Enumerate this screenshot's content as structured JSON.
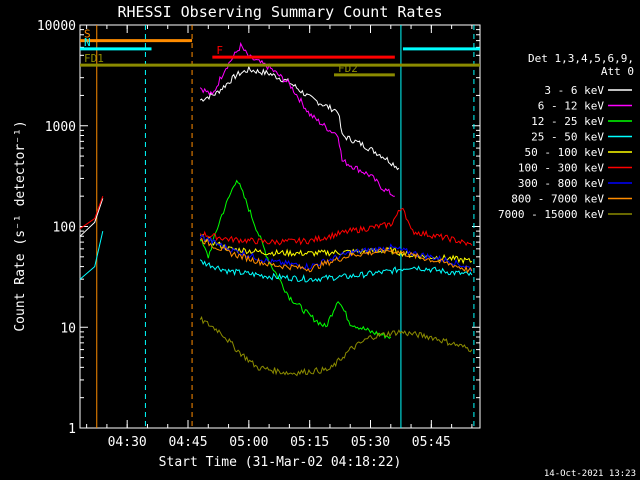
{
  "chart_data": {
    "type": "line",
    "title": "RHESSI Observing Summary Count Rates",
    "xlabel": "Start Time (31-Mar-02 04:18:22)",
    "ylabel": "Count Rate (s⁻¹ detector⁻¹)",
    "y_scale": "log",
    "ylim": [
      1,
      10000
    ],
    "xlim": [
      "04:18:22",
      "05:57:00"
    ],
    "x_ticks": [
      "04:30",
      "04:45",
      "05:00",
      "05:15",
      "05:30",
      "05:45"
    ],
    "y_ticks": [
      "1",
      "10",
      "100",
      "1000",
      "10000"
    ],
    "grid": false,
    "legend_header": [
      "Det 1,3,4,5,6,9,",
      "Att 0"
    ],
    "legend_position": "right",
    "timestamp": "14-Oct-2021 13:23",
    "series": [
      {
        "name": "3 - 6 keV",
        "color": "#ffffff",
        "points": [
          [
            "04:48:00",
            1800
          ],
          [
            "04:52:00",
            2100
          ],
          [
            "04:57:00",
            3200
          ],
          [
            "05:00:00",
            3600
          ],
          [
            "05:05:00",
            3300
          ],
          [
            "05:10:00",
            2700
          ],
          [
            "05:15:00",
            1900
          ],
          [
            "05:20:00",
            1500
          ],
          [
            "05:22:00",
            1400
          ],
          [
            "05:23:00",
            800
          ],
          [
            "05:28:00",
            650
          ],
          [
            "05:33:00",
            500
          ],
          [
            "05:37:00",
            380
          ]
        ]
      },
      {
        "name": "6 - 12 keV",
        "color": "#ff00ff",
        "points": [
          [
            "04:48:00",
            2400
          ],
          [
            "04:51:00",
            2000
          ],
          [
            "04:54:00",
            3600
          ],
          [
            "04:58:00",
            6200
          ],
          [
            "05:00:00",
            4800
          ],
          [
            "05:05:00",
            3800
          ],
          [
            "05:10:00",
            2600
          ],
          [
            "05:15:00",
            1300
          ],
          [
            "05:20:00",
            900
          ],
          [
            "05:22:00",
            820
          ],
          [
            "05:23:00",
            450
          ],
          [
            "05:30:00",
            320
          ],
          [
            "05:33:00",
            240
          ],
          [
            "05:36:00",
            200
          ]
        ]
      },
      {
        "name": "12 - 25 keV",
        "color": "#00ff00",
        "points": [
          [
            "04:48:00",
            75
          ],
          [
            "04:50:00",
            50
          ],
          [
            "04:53:00",
            120
          ],
          [
            "04:57:00",
            300
          ],
          [
            "05:00:00",
            150
          ],
          [
            "05:05:00",
            45
          ],
          [
            "05:10:00",
            20
          ],
          [
            "05:15:00",
            13
          ],
          [
            "05:19:00",
            10
          ],
          [
            "05:22:00",
            19
          ],
          [
            "05:25:00",
            11
          ],
          [
            "05:30:00",
            9
          ],
          [
            "05:35:00",
            8
          ]
        ]
      },
      {
        "name": "25 - 50 keV",
        "color": "#00ffff",
        "points": [
          [
            "04:48:00",
            45
          ],
          [
            "04:55:00",
            36
          ],
          [
            "05:05:00",
            32
          ],
          [
            "05:15:00",
            30
          ],
          [
            "05:25:00",
            32
          ],
          [
            "05:35:00",
            36
          ],
          [
            "05:40:00",
            40
          ],
          [
            "05:50:00",
            35
          ],
          [
            "05:55:00",
            33
          ]
        ]
      },
      {
        "name": "50 - 100 keV",
        "color": "#ffff00",
        "points": [
          [
            "04:48:00",
            80
          ],
          [
            "04:55:00",
            60
          ],
          [
            "05:05:00",
            55
          ],
          [
            "05:15:00",
            54
          ],
          [
            "05:25:00",
            56
          ],
          [
            "05:35:00",
            58
          ],
          [
            "05:40:00",
            52
          ],
          [
            "05:50:00",
            48
          ],
          [
            "05:55:00",
            45
          ]
        ]
      },
      {
        "name": "100 - 300 keV",
        "color": "#ff0000",
        "points": [
          [
            "04:48:00",
            85
          ],
          [
            "04:55:00",
            75
          ],
          [
            "05:05:00",
            70
          ],
          [
            "05:15:00",
            72
          ],
          [
            "05:25:00",
            90
          ],
          [
            "05:35:00",
            105
          ],
          [
            "05:38:00",
            160
          ],
          [
            "05:40:00",
            90
          ],
          [
            "05:50:00",
            75
          ],
          [
            "05:55:00",
            65
          ]
        ]
      },
      {
        "name": "300 - 800 keV",
        "color": "#0000ff",
        "points": [
          [
            "04:48:00",
            80
          ],
          [
            "04:55:00",
            60
          ],
          [
            "05:05:00",
            45
          ],
          [
            "05:15:00",
            40
          ],
          [
            "05:25:00",
            55
          ],
          [
            "05:35:00",
            62
          ],
          [
            "05:40:00",
            55
          ],
          [
            "05:50:00",
            45
          ],
          [
            "05:55:00",
            38
          ]
        ]
      },
      {
        "name": "800 - 7000 keV",
        "color": "#ff8c00",
        "points": [
          [
            "04:48:00",
            75
          ],
          [
            "04:55:00",
            55
          ],
          [
            "05:05:00",
            42
          ],
          [
            "05:15:00",
            38
          ],
          [
            "05:25:00",
            52
          ],
          [
            "05:35:00",
            58
          ],
          [
            "05:40:00",
            52
          ],
          [
            "05:50:00",
            42
          ],
          [
            "05:55:00",
            36
          ]
        ]
      },
      {
        "name": "7000 - 15000 keV",
        "color": "#8b8b00",
        "points": [
          [
            "04:48:00",
            12
          ],
          [
            "04:53:00",
            9
          ],
          [
            "04:57:00",
            6
          ],
          [
            "05:02:00",
            4
          ],
          [
            "05:10:00",
            3.5
          ],
          [
            "05:20:00",
            3.8
          ],
          [
            "05:25:00",
            6
          ],
          [
            "05:30:00",
            8
          ],
          [
            "05:37:00",
            9
          ],
          [
            "05:45:00",
            8
          ],
          [
            "05:55:00",
            6
          ]
        ]
      }
    ],
    "pre_segment": [
      {
        "series": "3 - 6 keV",
        "points": [
          [
            "04:18:22",
            80
          ],
          [
            "04:22:00",
            110
          ],
          [
            "04:24:00",
            190
          ]
        ]
      },
      {
        "series": "100 - 300 keV",
        "points": [
          [
            "04:18:22",
            95
          ],
          [
            "04:22:00",
            120
          ],
          [
            "04:24:00",
            200
          ]
        ]
      },
      {
        "series": "25 - 50 keV",
        "points": [
          [
            "04:18:22",
            30
          ],
          [
            "04:22:00",
            40
          ],
          [
            "04:24:00",
            90
          ]
        ]
      }
    ],
    "annotations": [
      {
        "label": "S",
        "color": "#ff8c00",
        "start": "04:18:22",
        "end": "04:46:00",
        "y": 7000
      },
      {
        "label": "N",
        "color": "#00ffff",
        "start": "04:18:22",
        "end": "04:36:00",
        "y": 5800
      },
      {
        "label": "F",
        "color": "#ff0000",
        "start": "04:51:00",
        "end": "05:36:00",
        "y": 4800
      },
      {
        "label": "FD1",
        "color": "#8b8b00",
        "start": "04:18:22",
        "end": "05:57:00",
        "y": 4000
      },
      {
        "label": "FD2",
        "color": "#8b8b00",
        "start": "05:21:00",
        "end": "05:36:00",
        "y": 3200
      },
      {
        "label": "",
        "color": "#00ffff",
        "start": "05:38:00",
        "end": "05:57:00",
        "y": 5800
      }
    ],
    "vertical_lines": [
      {
        "time": "04:22:30",
        "color": "#ff8c00",
        "style": "solid"
      },
      {
        "time": "04:34:30",
        "color": "#00ffff",
        "style": "dashed"
      },
      {
        "time": "04:46:00",
        "color": "#ff8c00",
        "style": "dashed"
      },
      {
        "time": "05:37:30",
        "color": "#00ffff",
        "style": "solid"
      },
      {
        "time": "05:55:30",
        "color": "#00ffff",
        "style": "dashed"
      }
    ]
  }
}
